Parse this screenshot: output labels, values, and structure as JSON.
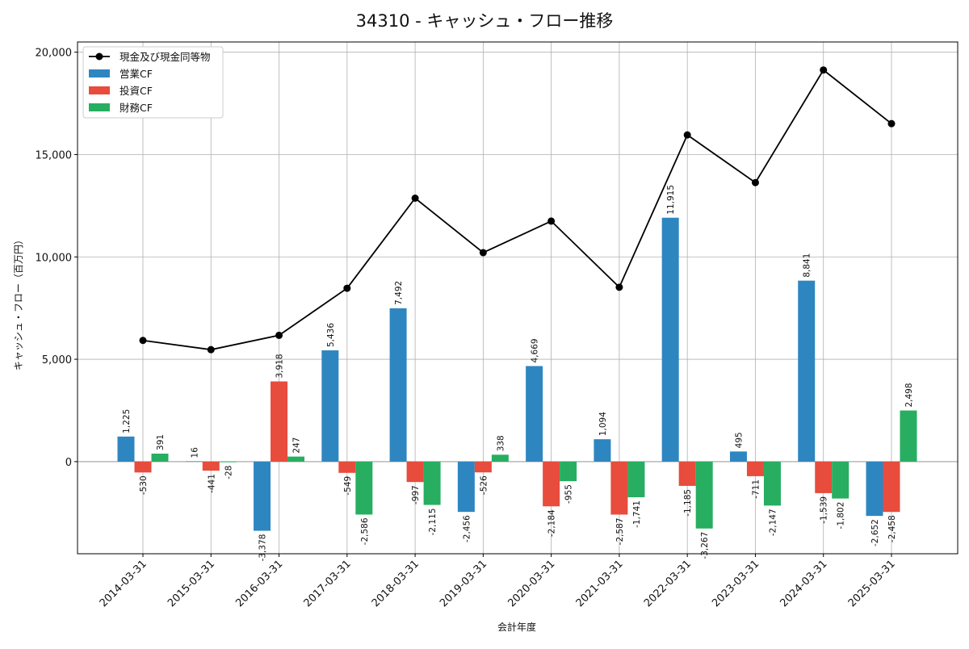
{
  "chart_data": {
    "type": "bar+line",
    "title": "34310 - キャッシュ・フロー推移",
    "xlabel": "会計年度",
    "ylabel": "キャッシュ・フロー（百万円）",
    "ylim": [
      -4500,
      20500
    ],
    "yticks": [
      0,
      5000,
      10000,
      15000,
      20000
    ],
    "ytick_labels": [
      "0",
      "5,000",
      "10,000",
      "15,000",
      "20,000"
    ],
    "grid": true,
    "legend_position": "top-left",
    "categories": [
      "2014-03-31",
      "2015-03-31",
      "2016-03-31",
      "2017-03-31",
      "2018-03-31",
      "2019-03-31",
      "2020-03-31",
      "2021-03-31",
      "2022-03-31",
      "2023-03-31",
      "2024-03-31",
      "2025-03-31"
    ],
    "series": [
      {
        "name": "営業CF",
        "kind": "bar",
        "color": "#2e86c1",
        "values": [
          1225,
          16,
          -3378,
          5436,
          7492,
          -2456,
          4669,
          1094,
          11915,
          495,
          8841,
          -2652
        ],
        "labels": [
          "1,225",
          "16",
          "-3,378",
          "5,436",
          "7,492",
          "-2,456",
          "4,669",
          "1,094",
          "11,915",
          "495",
          "8,841",
          "-2,652"
        ]
      },
      {
        "name": "投資CF",
        "kind": "bar",
        "color": "#e74c3c",
        "values": [
          -530,
          -441,
          3918,
          -549,
          -997,
          -526,
          -2184,
          -2587,
          -1185,
          -711,
          -1539,
          -2458
        ],
        "labels": [
          "-530",
          "-441",
          "3,918",
          "-549",
          "-997",
          "-526",
          "-2,184",
          "-2,587",
          "-1,185",
          "-711",
          "-1,539",
          "-2,458"
        ]
      },
      {
        "name": "財務CF",
        "kind": "bar",
        "color": "#27ae60",
        "values": [
          391,
          -28,
          247,
          -2586,
          -2115,
          338,
          -955,
          -1741,
          -3267,
          -2147,
          -1802,
          2498
        ],
        "labels": [
          "391",
          "-28",
          "247",
          "-2,586",
          "-2,115",
          "338",
          "-955",
          "-1,741",
          "-3,267",
          "-2,147",
          "-1,802",
          "2,498"
        ]
      },
      {
        "name": "現金及び現金同等物",
        "kind": "line",
        "color": "#000000",
        "values": [
          5920,
          5470,
          6170,
          8470,
          12870,
          10210,
          11750,
          8520,
          15960,
          13630,
          19130,
          16510
        ]
      }
    ]
  }
}
